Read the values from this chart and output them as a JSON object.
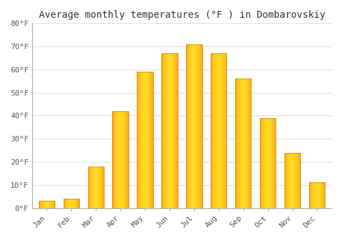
{
  "title": "Average monthly temperatures (°F ) in Dombarovskiy",
  "categories": [
    "Jan",
    "Feb",
    "Mar",
    "Apr",
    "May",
    "Jun",
    "Jul",
    "Aug",
    "Sep",
    "Oct",
    "Nov",
    "Dec"
  ],
  "values": [
    3,
    4,
    18,
    42,
    59,
    67,
    71,
    67,
    56,
    39,
    24,
    11
  ],
  "bar_color_left": "#E07800",
  "bar_color_center": "#FFB700",
  "bar_color_right": "#FFD050",
  "background_color": "#FFFFFF",
  "plot_bg_color": "#FFFFFF",
  "grid_color": "#DDDDDD",
  "ylim": [
    0,
    80
  ],
  "yticks": [
    0,
    10,
    20,
    30,
    40,
    50,
    60,
    70,
    80
  ],
  "ytick_labels": [
    "0°F",
    "10°F",
    "20°F",
    "30°F",
    "40°F",
    "50°F",
    "60°F",
    "70°F",
    "80°F"
  ],
  "title_fontsize": 10,
  "tick_fontsize": 8,
  "font_family": "monospace",
  "text_color": "#555555",
  "spine_color": "#AAAAAA"
}
